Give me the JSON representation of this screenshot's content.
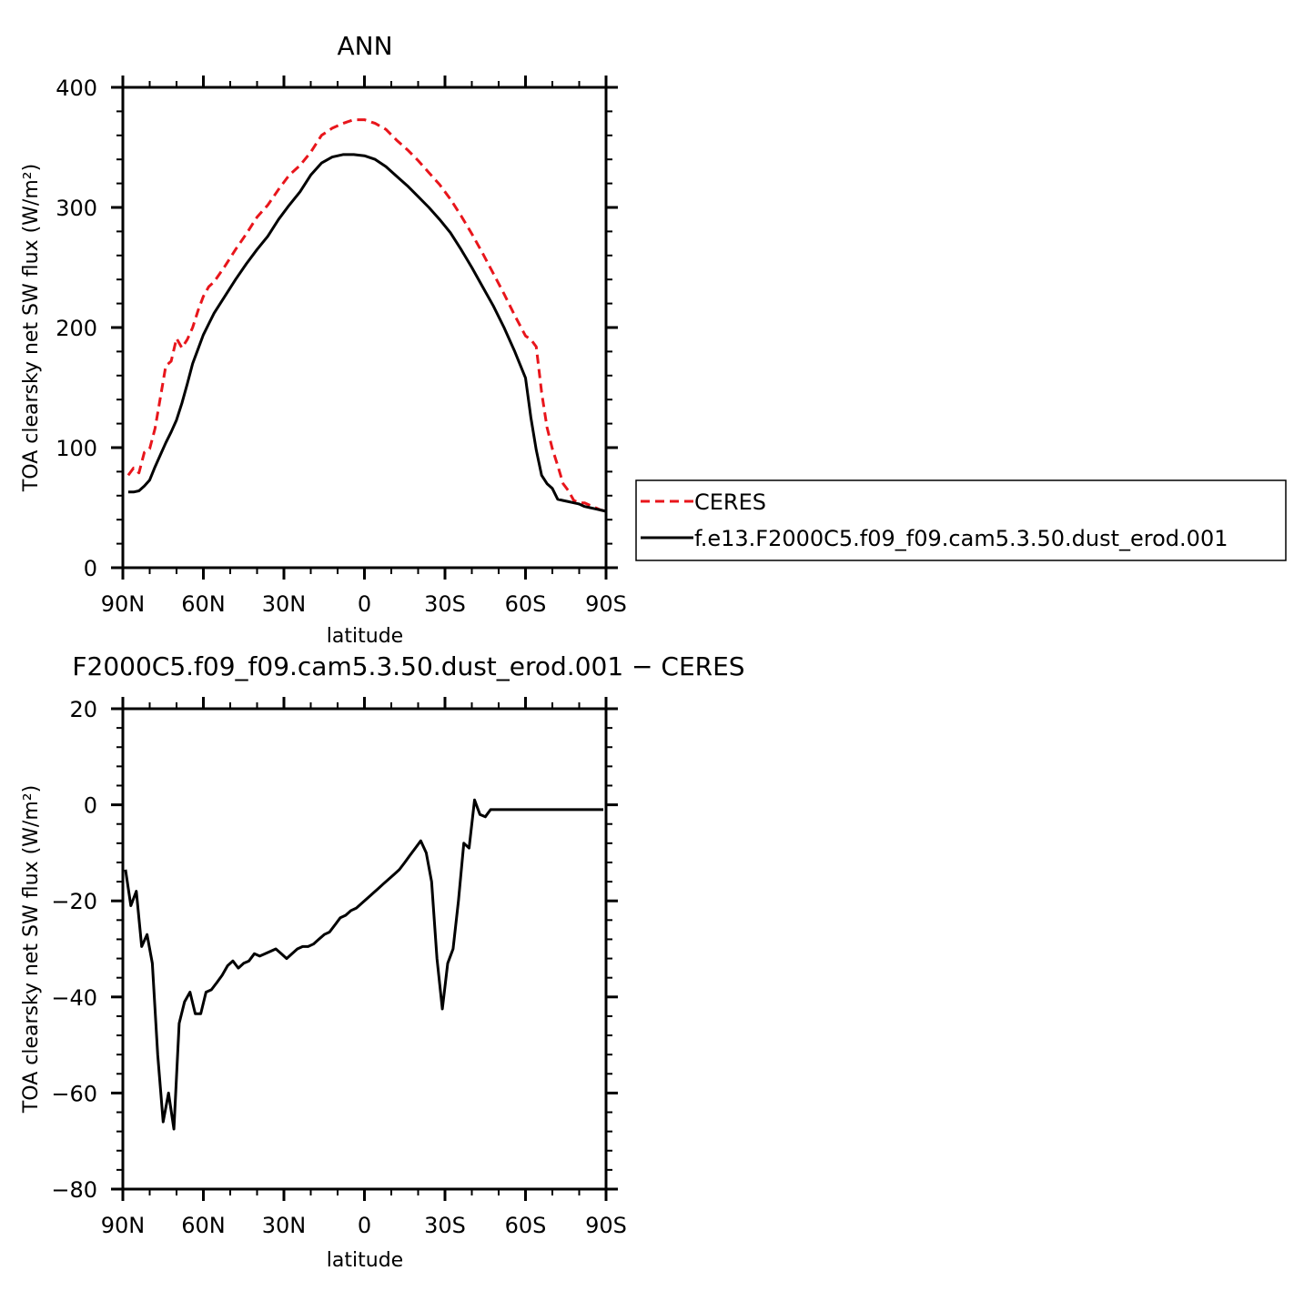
{
  "chart_data": [
    {
      "type": "line",
      "title": "ANN",
      "xlabel": "latitude",
      "ylabel": "TOA clearsky net SW flux (W/m²)",
      "xlim": [
        90,
        -90
      ],
      "ylim": [
        0,
        400
      ],
      "x_ticks": [
        {
          "value": 90,
          "label": "90N"
        },
        {
          "value": 60,
          "label": "60N"
        },
        {
          "value": 30,
          "label": "30N"
        },
        {
          "value": 0,
          "label": "0"
        },
        {
          "value": -30,
          "label": "30S"
        },
        {
          "value": -60,
          "label": "60S"
        },
        {
          "value": -90,
          "label": "90S"
        }
      ],
      "y_ticks": [
        {
          "value": 0,
          "label": "0"
        },
        {
          "value": 100,
          "label": "100"
        },
        {
          "value": 200,
          "label": "200"
        },
        {
          "value": 300,
          "label": "300"
        },
        {
          "value": 400,
          "label": "400"
        }
      ],
      "legend": {
        "placement": "right"
      },
      "series": [
        {
          "name": "CERES",
          "color": "#e8151b",
          "dash": "dashed",
          "x": [
            88,
            86,
            84,
            82,
            80,
            78,
            76,
            74,
            72,
            70,
            68,
            66,
            64,
            62,
            60,
            58,
            56,
            52,
            48,
            44,
            40,
            36,
            32,
            28,
            24,
            20,
            16,
            12,
            8,
            4,
            0,
            -4,
            -8,
            -12,
            -16,
            -20,
            -24,
            -28,
            -32,
            -36,
            -40,
            -44,
            -48,
            -52,
            -56,
            -60,
            -62,
            -64,
            -66,
            -68,
            -70,
            -72,
            -74,
            -76,
            -78,
            -80,
            -82,
            -84,
            -86,
            -88,
            -90
          ],
          "y": [
            77,
            83,
            79,
            96,
            99,
            116,
            142,
            168,
            172,
            191,
            183,
            190,
            200,
            214,
            226,
            234,
            238,
            251,
            265,
            278,
            292,
            302,
            315,
            327,
            335,
            346,
            360,
            366,
            370,
            373,
            373,
            370,
            365,
            356,
            348,
            339,
            329,
            319,
            307,
            293,
            278,
            262,
            245,
            228,
            210,
            193,
            190,
            184,
            146,
            117,
            99,
            85,
            70,
            64,
            56,
            54,
            54,
            52,
            50,
            48,
            47
          ],
          "legend_label": "CERES"
        },
        {
          "name": "f.e13.F2000C5.f09_f09.cam5.3.50.dust_erod.001",
          "color": "#000000",
          "dash": "solid",
          "x": [
            88,
            86,
            84,
            82,
            80,
            78,
            76,
            74,
            72,
            70,
            68,
            66,
            64,
            62,
            60,
            58,
            56,
            52,
            48,
            44,
            40,
            36,
            32,
            28,
            24,
            20,
            16,
            12,
            8,
            4,
            0,
            -4,
            -8,
            -12,
            -16,
            -20,
            -24,
            -28,
            -32,
            -36,
            -40,
            -44,
            -48,
            -52,
            -56,
            -60,
            -62,
            -64,
            -66,
            -68,
            -70,
            -72,
            -74,
            -76,
            -78,
            -80,
            -82,
            -84,
            -86,
            -88,
            -90
          ],
          "y": [
            63,
            63,
            64,
            68,
            73,
            84,
            94,
            104,
            113,
            123,
            137,
            153,
            170,
            182,
            194,
            203,
            212,
            226,
            240,
            253,
            265,
            276,
            290,
            302,
            313,
            327,
            337,
            342,
            344,
            344,
            343,
            340,
            334,
            326,
            318,
            309,
            300,
            290,
            279,
            265,
            250,
            234,
            218,
            200,
            180,
            158,
            125,
            98,
            77,
            70,
            66,
            57,
            56,
            55,
            54,
            53,
            51,
            50,
            49,
            48,
            47
          ],
          "legend_label": "f.e13.F2000C5.f09_f09.cam5.3.50.dust_erod.001"
        }
      ]
    },
    {
      "type": "line",
      "title": "F2000C5.f09_f09.cam5.3.50.dust_erod.001 − CERES",
      "xlabel": "latitude",
      "ylabel": "TOA clearsky net SW flux (W/m²)",
      "xlim": [
        90,
        -90
      ],
      "ylim": [
        -80,
        20
      ],
      "x_ticks": [
        {
          "value": 90,
          "label": "90N"
        },
        {
          "value": 60,
          "label": "60N"
        },
        {
          "value": 30,
          "label": "30N"
        },
        {
          "value": 0,
          "label": "0"
        },
        {
          "value": -30,
          "label": "30S"
        },
        {
          "value": -60,
          "label": "60S"
        },
        {
          "value": -90,
          "label": "90S"
        }
      ],
      "y_ticks": [
        {
          "value": -80,
          "label": "−80"
        },
        {
          "value": -60,
          "label": "−60"
        },
        {
          "value": -40,
          "label": "−40"
        },
        {
          "value": -20,
          "label": "−20"
        },
        {
          "value": 0,
          "label": "0"
        },
        {
          "value": 20,
          "label": "20"
        }
      ],
      "series": [
        {
          "color": "#000000",
          "dash": "solid",
          "x": [
            89,
            87,
            85,
            83,
            81,
            79,
            77,
            75,
            73,
            71,
            69,
            67,
            65,
            63,
            61,
            59,
            57,
            55,
            53,
            51,
            49,
            47,
            45,
            43,
            41,
            39,
            37,
            35,
            33,
            31,
            29,
            27,
            25,
            23,
            21,
            19,
            17,
            15,
            13,
            11,
            9,
            7,
            5,
            3,
            1,
            -1,
            -3,
            -5,
            -7,
            -9,
            -11,
            -13,
            -15,
            -17,
            -19,
            -21,
            -23,
            -25,
            -27,
            -29,
            -31,
            -33,
            -35,
            -37,
            -39,
            -41,
            -43,
            -45,
            -47,
            -49,
            -51,
            -53,
            -55,
            -57,
            -59,
            -61,
            -63,
            -65,
            -67,
            -69,
            -71,
            -73,
            -75,
            -77,
            -79,
            -81,
            -83,
            -85,
            -87,
            -89
          ],
          "y": [
            -13.5,
            -21,
            -18,
            -29.5,
            -27,
            -33,
            -52,
            -66,
            -60,
            -67.5,
            -45.5,
            -41,
            -39,
            -43.5,
            -43.5,
            -39,
            -38.5,
            -37,
            -35.5,
            -33.5,
            -32.5,
            -34,
            -33,
            -32.5,
            -31,
            -31.5,
            -31,
            -30.5,
            -30,
            -31,
            -32,
            -31,
            -30,
            -29.5,
            -29.5,
            -29,
            -28,
            -27,
            -26.5,
            -25,
            -23.5,
            -23,
            -22,
            -21.5,
            -20.5,
            -19.5,
            -18.5,
            -17.5,
            -16.5,
            -15.5,
            -14.5,
            -13.5,
            -12,
            -10.5,
            -9,
            -7.5,
            -10,
            -16,
            -32,
            -42.5,
            -33,
            -30,
            -20,
            -8,
            -9,
            1,
            -2,
            -2.5,
            -1,
            -1,
            -1,
            -1,
            -1,
            -1,
            -1,
            -1,
            -1,
            -1,
            -1,
            -1,
            -1,
            -1,
            -1,
            -1,
            -1,
            -1,
            -1,
            -1,
            -1,
            -1
          ]
        }
      ]
    }
  ]
}
